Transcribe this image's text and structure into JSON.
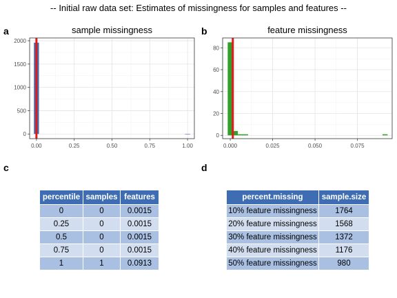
{
  "page": {
    "title": "-- Initial raw data set: Estimates of missingness for samples and features --",
    "panel_letters": [
      "a",
      "b",
      "c",
      "d"
    ]
  },
  "colors": {
    "sample_bar": "#3f6db3",
    "feature_bar": "#33a02c",
    "vline": "#e31a1c",
    "table_header": "#3f6db3",
    "row_odd": "#a9c0e2",
    "row_even": "#d2deef"
  },
  "chart_data": [
    {
      "type": "bar",
      "title": "sample missingness",
      "xlabel": "",
      "ylabel": "",
      "xlim": [
        -0.045,
        1.045
      ],
      "ylim": [
        -100,
        2060
      ],
      "xticks": [
        0.0,
        0.25,
        0.5,
        0.75,
        1.0
      ],
      "xtick_labels": [
        "0.00",
        "0.25",
        "0.50",
        "0.75",
        "1.00"
      ],
      "yticks": [
        0,
        500,
        1000,
        1500,
        2000
      ],
      "ytick_labels": [
        "0",
        "500",
        "1000",
        "1500",
        "2000"
      ],
      "bin_width": 0.0333,
      "bins": [
        {
          "x": 0.0,
          "value": 1959
        },
        {
          "x": 1.0,
          "value": 1
        }
      ],
      "vline_x": 0.0,
      "grid": true,
      "legend": "none"
    },
    {
      "type": "bar",
      "title": "feature missingness",
      "xlabel": "",
      "ylabel": "",
      "xlim": [
        -0.0045,
        0.0955
      ],
      "ylim": [
        -3,
        89
      ],
      "xticks": [
        0.0,
        0.025,
        0.05,
        0.075
      ],
      "xtick_labels": [
        "0.000",
        "0.025",
        "0.050",
        "0.075"
      ],
      "yticks": [
        0,
        20,
        40,
        60,
        80
      ],
      "ytick_labels": [
        "0",
        "20",
        "40",
        "60",
        "80"
      ],
      "bin_width": 0.003,
      "bins": [
        {
          "x": 0.0,
          "value": 85
        },
        {
          "x": 0.003,
          "value": 4
        },
        {
          "x": 0.006,
          "value": 1
        },
        {
          "x": 0.009,
          "value": 1
        },
        {
          "x": 0.0913,
          "value": 1
        }
      ],
      "vline_x": 0.0015,
      "grid": true,
      "legend": "none"
    }
  ],
  "table_c": {
    "headers": [
      "percentile",
      "samples",
      "features"
    ],
    "rows": [
      [
        "0",
        "0",
        "0.0015"
      ],
      [
        "0.25",
        "0",
        "0.0015"
      ],
      [
        "0.5",
        "0",
        "0.0015"
      ],
      [
        "0.75",
        "0",
        "0.0015"
      ],
      [
        "1",
        "1",
        "0.0913"
      ]
    ]
  },
  "table_d": {
    "headers": [
      "percent.missing",
      "sample.size"
    ],
    "rows": [
      [
        "10% feature missingness",
        "1764"
      ],
      [
        "20% feature missingness",
        "1568"
      ],
      [
        "30% feature missingness",
        "1372"
      ],
      [
        "40% feature missingness",
        "1176"
      ],
      [
        "50% feature missingness",
        "980"
      ]
    ]
  }
}
